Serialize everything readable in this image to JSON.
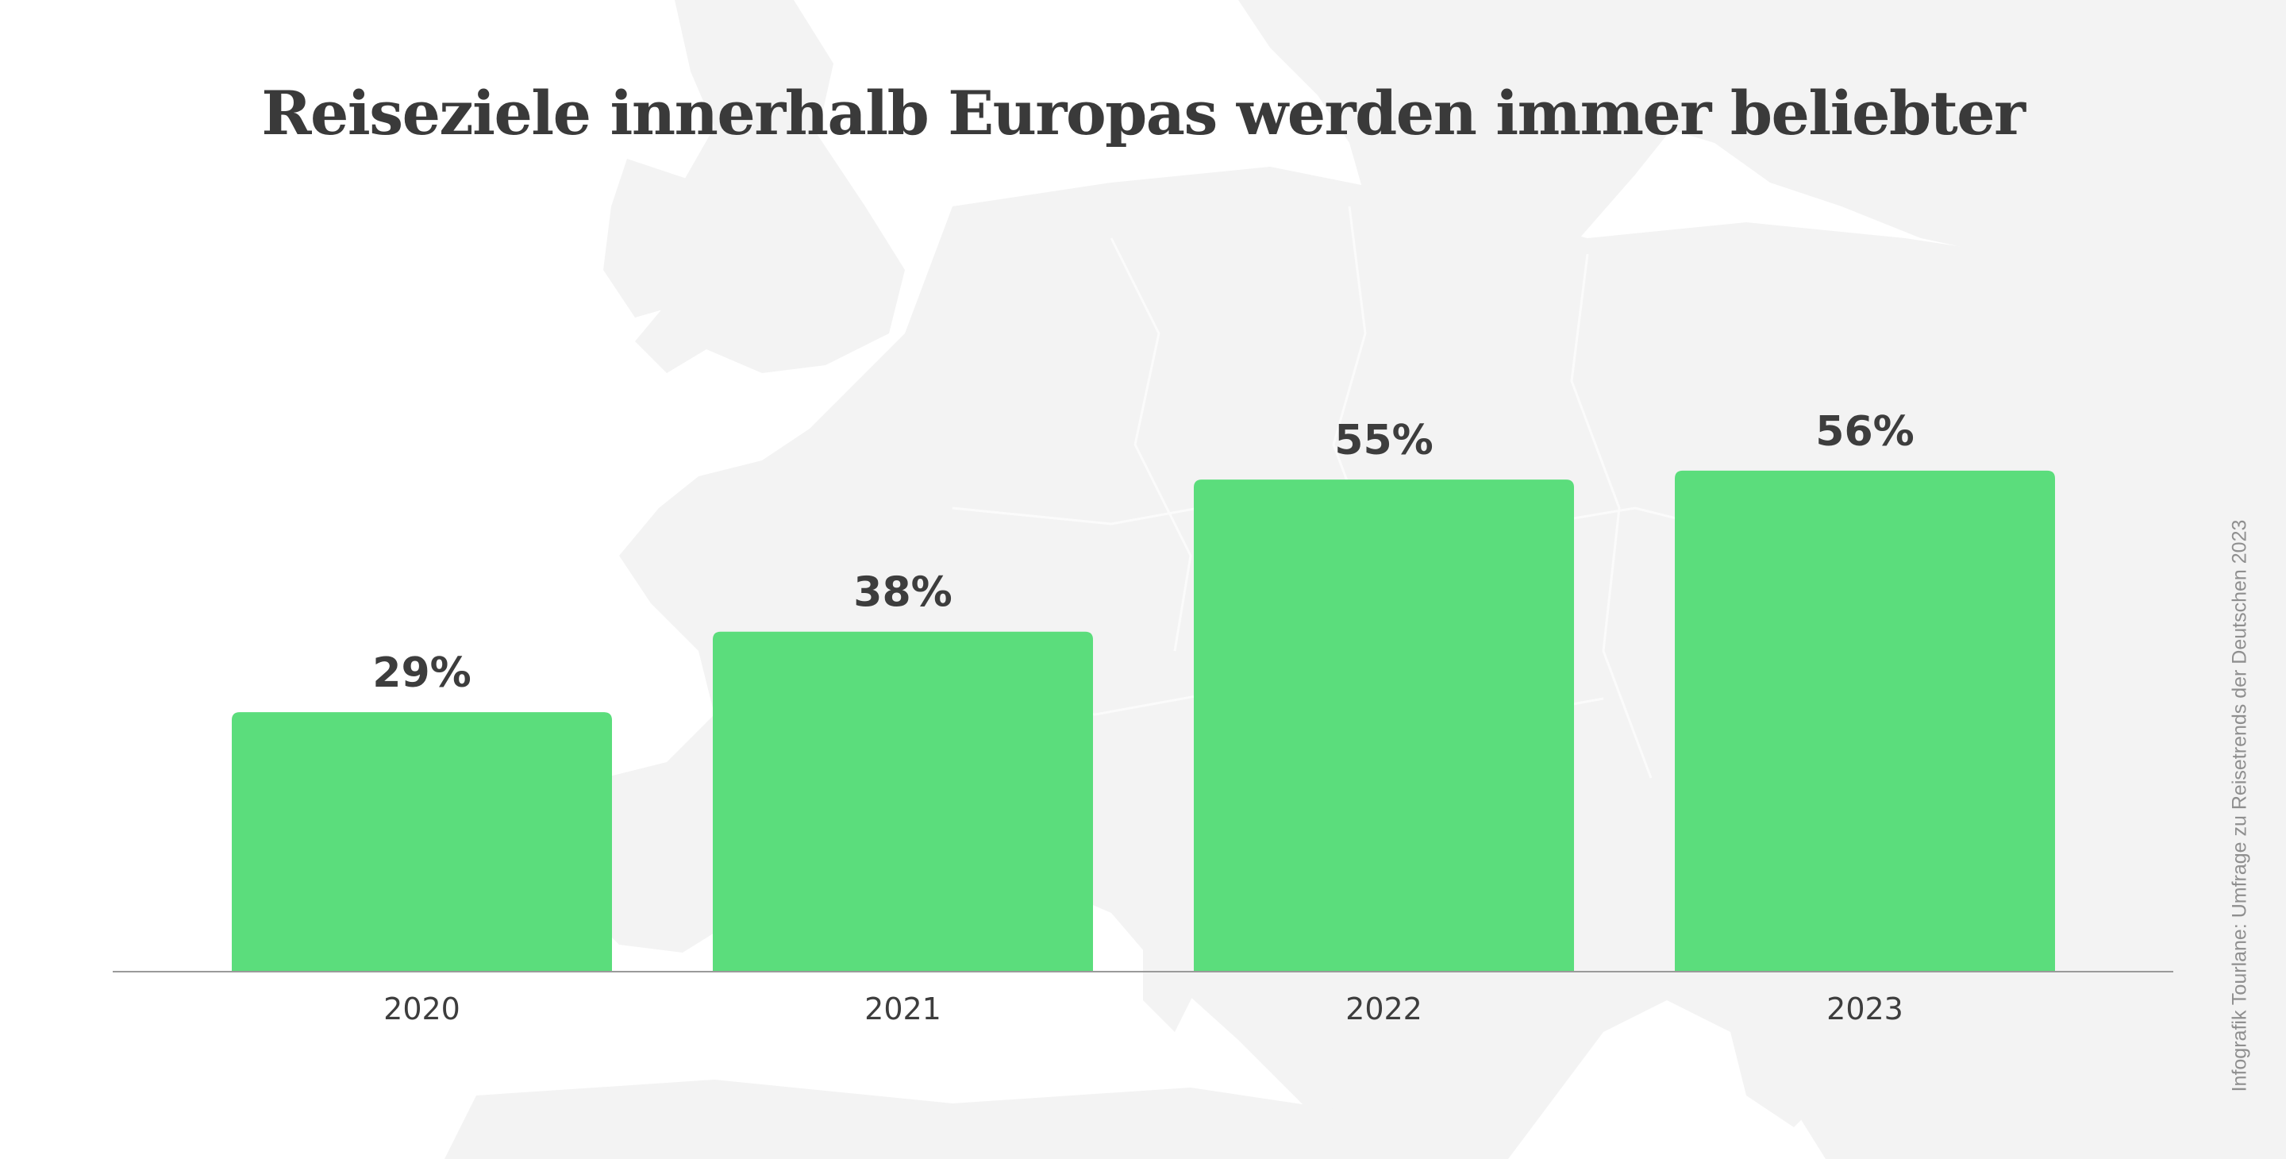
{
  "header": {
    "title": "Reiseziele innerhalb Europas werden immer beliebter"
  },
  "footer": {
    "source": "Infografik Tourlane: Umfrage zu Reisetrends der Deutschen 2023"
  },
  "colors": {
    "bar": "#5bdd7c",
    "text": "#3d3d3d",
    "axis": "#9a9a9a",
    "map": "#f3f3f3"
  },
  "chart_data": {
    "type": "bar",
    "title": "Reiseziele innerhalb Europas werden immer beliebter",
    "categories": [
      "2020",
      "2021",
      "2022",
      "2023"
    ],
    "values": [
      29,
      38,
      55,
      56
    ],
    "value_labels": [
      "29%",
      "38%",
      "55%",
      "56%"
    ],
    "unit": "%",
    "xlabel": "",
    "ylabel": "",
    "ylim": [
      0,
      65
    ],
    "grid": false,
    "legend": "none"
  }
}
